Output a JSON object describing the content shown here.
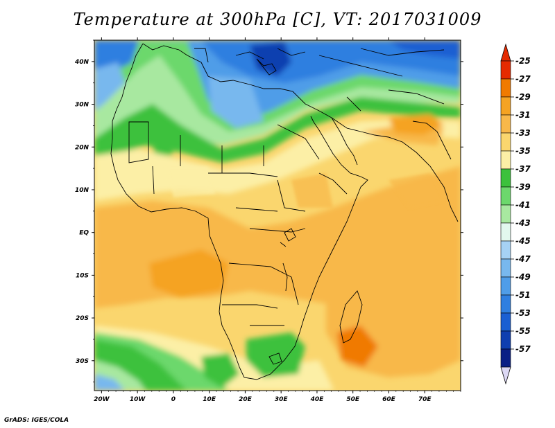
{
  "title": "Temperature at 300hPa [C], VT: 2017031009",
  "credit": "GrADS: IGES/COLA",
  "map": {
    "lat_labels": [
      "40N",
      "30N",
      "20N",
      "10N",
      "EQ",
      "10S",
      "20S",
      "30S"
    ],
    "lat_values": [
      40,
      30,
      20,
      10,
      0,
      -10,
      -20,
      -30
    ],
    "lon_labels": [
      "20W",
      "10W",
      "0",
      "10E",
      "20E",
      "30E",
      "40E",
      "50E",
      "60E",
      "70E"
    ],
    "lon_values": [
      -20,
      -10,
      0,
      10,
      20,
      30,
      40,
      50,
      60,
      70
    ],
    "lon_range": [
      -22,
      80
    ],
    "lat_range": [
      -37,
      45
    ]
  },
  "colorbar": {
    "labels": [
      "-25",
      "-27",
      "-29",
      "-31",
      "-33",
      "-35",
      "-37",
      "-39",
      "-41",
      "-43",
      "-45",
      "-47",
      "-49",
      "-51",
      "-53",
      "-55",
      "-57"
    ],
    "colors": [
      "#e52a00",
      "#f07a00",
      "#f5a323",
      "#f8b84a",
      "#fad66e",
      "#fcefa6",
      "#3cc13c",
      "#6cd86c",
      "#a8e8a0",
      "#e2f8ee",
      "#a6d2f4",
      "#78b8ee",
      "#4f9de8",
      "#2f7fe0",
      "#1a5fd2",
      "#0f3fb0",
      "#0a1f85"
    ],
    "top_arrow_color": "#e52a00",
    "bottom_arrow_color": "#dcd8f4"
  }
}
